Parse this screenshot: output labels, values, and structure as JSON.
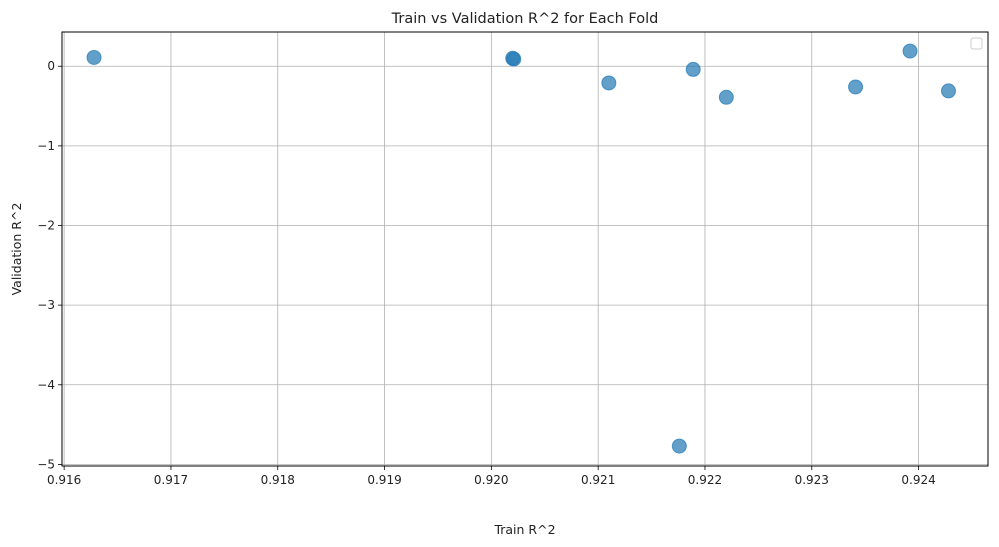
{
  "chart_data": {
    "type": "scatter",
    "title": "Train vs Validation R^2 for Each Fold",
    "xlabel": "Train R^2",
    "ylabel": "Validation R^2",
    "xlim": [
      0.91598,
      0.92465
    ],
    "ylim": [
      -5.02,
      0.43
    ],
    "xticks": [
      0.916,
      0.917,
      0.918,
      0.919,
      0.92,
      0.921,
      0.922,
      0.923,
      0.924
    ],
    "xtick_labels": [
      "0.916",
      "0.917",
      "0.918",
      "0.919",
      "0.920",
      "0.921",
      "0.922",
      "0.923",
      "0.924"
    ],
    "yticks": [
      0,
      -1,
      -2,
      -3,
      -4,
      -5
    ],
    "ytick_labels": [
      "0",
      "−1",
      "−2",
      "−3",
      "−4",
      "−5"
    ],
    "grid": true,
    "legend": "top-right",
    "point_color": "#1f77b4",
    "points": [
      {
        "x": 0.91628,
        "y": 0.11
      },
      {
        "x": 0.9202,
        "y": 0.1
      },
      {
        "x": 0.92021,
        "y": 0.09
      },
      {
        "x": 0.9211,
        "y": -0.21
      },
      {
        "x": 0.92176,
        "y": -4.77
      },
      {
        "x": 0.92189,
        "y": -0.04
      },
      {
        "x": 0.9222,
        "y": -0.39
      },
      {
        "x": 0.92341,
        "y": -0.26
      },
      {
        "x": 0.92392,
        "y": 0.19
      },
      {
        "x": 0.92428,
        "y": -0.31
      }
    ]
  }
}
